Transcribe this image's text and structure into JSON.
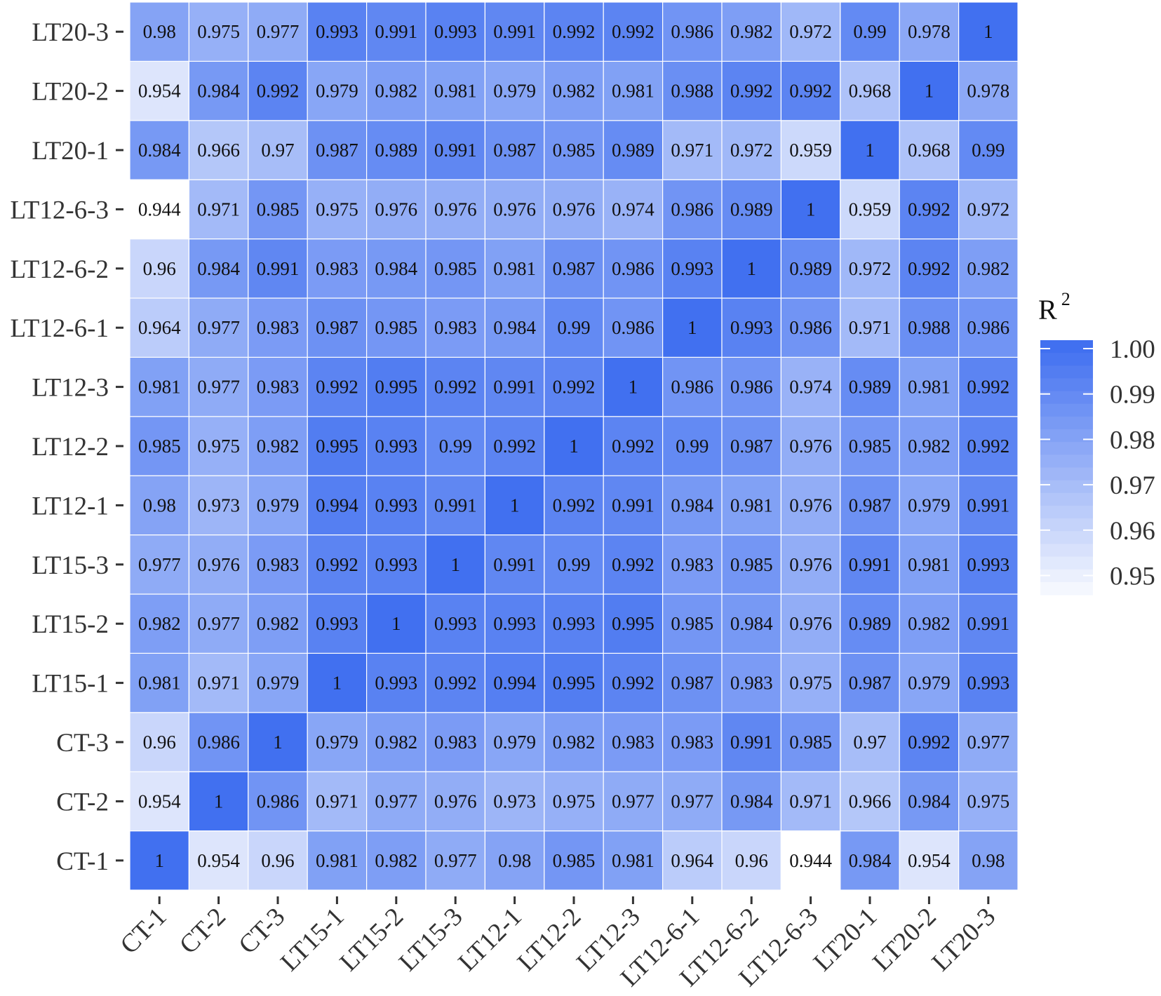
{
  "chart_data": {
    "type": "heatmap",
    "x_categories": [
      "CT-1",
      "CT-2",
      "CT-3",
      "LT15-1",
      "LT15-2",
      "LT15-3",
      "LT12-1",
      "LT12-2",
      "LT12-3",
      "LT12-6-1",
      "LT12-6-2",
      "LT12-6-3",
      "LT20-1",
      "LT20-2",
      "LT20-3"
    ],
    "y_categories": [
      "CT-1",
      "CT-2",
      "CT-3",
      "LT15-1",
      "LT15-2",
      "LT15-3",
      "LT12-1",
      "LT12-2",
      "LT12-3",
      "LT12-6-1",
      "LT12-6-2",
      "LT12-6-3",
      "LT20-1",
      "LT20-2",
      "LT20-3"
    ],
    "values": [
      [
        "1",
        "0.954",
        "0.96",
        "0.981",
        "0.982",
        "0.977",
        "0.98",
        "0.985",
        "0.981",
        "0.964",
        "0.96",
        "0.944",
        "0.984",
        "0.954",
        "0.98"
      ],
      [
        "0.954",
        "1",
        "0.986",
        "0.971",
        "0.977",
        "0.976",
        "0.973",
        "0.975",
        "0.977",
        "0.977",
        "0.984",
        "0.971",
        "0.966",
        "0.984",
        "0.975"
      ],
      [
        "0.96",
        "0.986",
        "1",
        "0.979",
        "0.982",
        "0.983",
        "0.979",
        "0.982",
        "0.983",
        "0.983",
        "0.991",
        "0.985",
        "0.97",
        "0.992",
        "0.977"
      ],
      [
        "0.981",
        "0.971",
        "0.979",
        "1",
        "0.993",
        "0.992",
        "0.994",
        "0.995",
        "0.992",
        "0.987",
        "0.983",
        "0.975",
        "0.987",
        "0.979",
        "0.993"
      ],
      [
        "0.982",
        "0.977",
        "0.982",
        "0.993",
        "1",
        "0.993",
        "0.993",
        "0.993",
        "0.995",
        "0.985",
        "0.984",
        "0.976",
        "0.989",
        "0.982",
        "0.991"
      ],
      [
        "0.977",
        "0.976",
        "0.983",
        "0.992",
        "0.993",
        "1",
        "0.991",
        "0.99",
        "0.992",
        "0.983",
        "0.985",
        "0.976",
        "0.991",
        "0.981",
        "0.993"
      ],
      [
        "0.98",
        "0.973",
        "0.979",
        "0.994",
        "0.993",
        "0.991",
        "1",
        "0.992",
        "0.991",
        "0.984",
        "0.981",
        "0.976",
        "0.987",
        "0.979",
        "0.991"
      ],
      [
        "0.985",
        "0.975",
        "0.982",
        "0.995",
        "0.993",
        "0.99",
        "0.992",
        "1",
        "0.992",
        "0.99",
        "0.987",
        "0.976",
        "0.985",
        "0.982",
        "0.992"
      ],
      [
        "0.981",
        "0.977",
        "0.983",
        "0.992",
        "0.995",
        "0.992",
        "0.991",
        "0.992",
        "1",
        "0.986",
        "0.986",
        "0.974",
        "0.989",
        "0.981",
        "0.992"
      ],
      [
        "0.964",
        "0.977",
        "0.983",
        "0.987",
        "0.985",
        "0.983",
        "0.984",
        "0.99",
        "0.986",
        "1",
        "0.993",
        "0.986",
        "0.971",
        "0.988",
        "0.986"
      ],
      [
        "0.96",
        "0.984",
        "0.991",
        "0.983",
        "0.984",
        "0.985",
        "0.981",
        "0.987",
        "0.986",
        "0.993",
        "1",
        "0.989",
        "0.972",
        "0.992",
        "0.982"
      ],
      [
        "0.944",
        "0.971",
        "0.985",
        "0.975",
        "0.976",
        "0.976",
        "0.976",
        "0.976",
        "0.974",
        "0.986",
        "0.989",
        "1",
        "0.959",
        "0.992",
        "0.972"
      ],
      [
        "0.984",
        "0.966",
        "0.97",
        "0.987",
        "0.989",
        "0.991",
        "0.987",
        "0.985",
        "0.989",
        "0.971",
        "0.972",
        "0.959",
        "1",
        "0.968",
        "0.99"
      ],
      [
        "0.954",
        "0.984",
        "0.992",
        "0.979",
        "0.982",
        "0.981",
        "0.979",
        "0.982",
        "0.981",
        "0.988",
        "0.992",
        "0.992",
        "0.968",
        "1",
        "0.978"
      ],
      [
        "0.98",
        "0.975",
        "0.977",
        "0.993",
        "0.991",
        "0.993",
        "0.991",
        "0.992",
        "0.992",
        "0.986",
        "0.982",
        "0.972",
        "0.99",
        "0.978",
        "1"
      ]
    ],
    "color_scale": {
      "title": "R",
      "title_superscript": "2",
      "min": 0.944,
      "max": 1.0,
      "low_color": "#ffffff",
      "high_color": "#4170f0",
      "ticks": [
        1.0,
        0.99,
        0.98,
        0.97,
        0.96,
        0.95
      ],
      "tick_labels": [
        "1.00",
        "0.99",
        "0.98",
        "0.97",
        "0.96",
        "0.95"
      ]
    },
    "legend_position": "right"
  }
}
